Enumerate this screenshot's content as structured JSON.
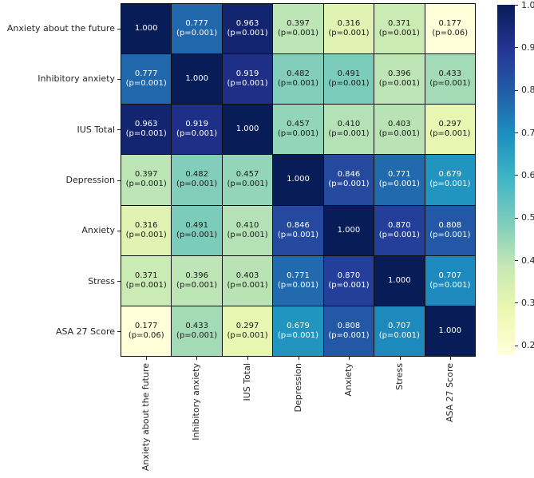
{
  "figure": {
    "background": "#ffffff",
    "text_color": "#262626"
  },
  "chart_data": {
    "type": "heatmap",
    "title": "",
    "variables": [
      "Anxiety about the future",
      "Inhibitory anxiety",
      "IUS Total",
      "Depression",
      "Anxiety",
      "Stress",
      "ASA 27 Score"
    ],
    "matrix": [
      [
        1.0,
        0.777,
        0.963,
        0.397,
        0.316,
        0.371,
        0.177
      ],
      [
        0.777,
        1.0,
        0.919,
        0.482,
        0.491,
        0.396,
        0.433
      ],
      [
        0.963,
        0.919,
        1.0,
        0.457,
        0.41,
        0.403,
        0.297
      ],
      [
        0.397,
        0.482,
        0.457,
        1.0,
        0.846,
        0.771,
        0.679
      ],
      [
        0.316,
        0.491,
        0.41,
        0.846,
        1.0,
        0.87,
        0.808
      ],
      [
        0.371,
        0.396,
        0.403,
        0.771,
        0.87,
        1.0,
        0.707
      ],
      [
        0.177,
        0.433,
        0.297,
        0.679,
        0.808,
        0.707,
        1.0
      ]
    ],
    "p_matrix": [
      [
        null,
        "(p=0.001)",
        "(p=0.001)",
        "(p=0.001)",
        "(p=0.001)",
        "(p=0.001)",
        "(p=0.06)"
      ],
      [
        "(p=0.001)",
        null,
        "(p=0.001)",
        "(p=0.001)",
        "(p=0.001)",
        "(p=0.001)",
        "(p=0.001)"
      ],
      [
        "(p=0.001)",
        "(p=0.001)",
        null,
        "(p=0.001)",
        "(p=0.001)",
        "(p=0.001)",
        "(p=0.001)"
      ],
      [
        "(p=0.001)",
        "(p=0.001)",
        "(p=0.001)",
        null,
        "(p=0.001)",
        "(p=0.001)",
        "(p=0.001)"
      ],
      [
        "(p=0.001)",
        "(p=0.001)",
        "(p=0.001)",
        "(p=0.001)",
        null,
        "(p=0.001)",
        "(p=0.001)"
      ],
      [
        "(p=0.001)",
        "(p=0.001)",
        "(p=0.001)",
        "(p=0.001)",
        "(p=0.001)",
        null,
        "(p=0.001)"
      ],
      [
        "(p=0.06)",
        "(p=0.001)",
        "(p=0.001)",
        "(p=0.001)",
        "(p=0.001)",
        "(p=0.001)",
        null
      ]
    ],
    "value_format_decimals": 3,
    "vmin": 0.177,
    "vmax": 1.0,
    "colormap_name": "YlGnBu",
    "colormap_stops": [
      "#ffffd9",
      "#edf8b1",
      "#c7e9b4",
      "#7fcdbb",
      "#41b6c4",
      "#1d91c0",
      "#225ea8",
      "#253494",
      "#081d58"
    ],
    "colorbar_ticks": [
      1.0,
      0.9,
      0.8,
      0.7,
      0.6,
      0.5,
      0.4,
      0.3,
      0.2
    ],
    "grid_color": "#0d0d0d",
    "tick_color": "#262626",
    "annot_color_on_dark": "#ffffff",
    "annot_color_on_light": "#1a1a1a",
    "legend_position": "right",
    "xlabel": "",
    "ylabel": ""
  }
}
